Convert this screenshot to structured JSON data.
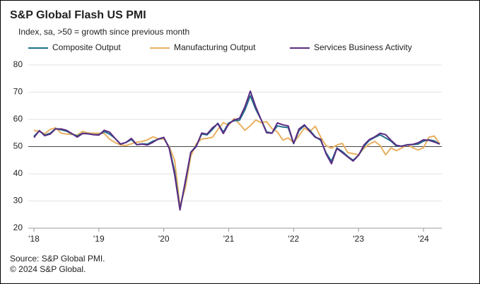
{
  "chart_data": {
    "type": "line",
    "title": "S&P Global Flash US PMI",
    "subtitle": "Index, sa, >50 = growth  since previous  month",
    "source": [
      "Source: S&P Global PMI.",
      "© 2024 S&P Global."
    ],
    "categories": [
      "'18",
      null,
      null,
      null,
      null,
      null,
      null,
      null,
      null,
      null,
      null,
      null,
      "'19",
      null,
      null,
      null,
      null,
      null,
      null,
      null,
      null,
      null,
      null,
      null,
      "'20",
      null,
      null,
      null,
      null,
      null,
      null,
      null,
      null,
      null,
      null,
      null,
      "'21",
      null,
      null,
      null,
      null,
      null,
      null,
      null,
      null,
      null,
      null,
      null,
      "'22",
      null,
      null,
      null,
      null,
      null,
      null,
      null,
      null,
      null,
      null,
      null,
      "'23",
      null,
      null,
      null,
      null,
      null,
      null,
      null,
      null,
      null,
      null,
      null,
      "'24",
      null,
      null,
      null
    ],
    "series": [
      {
        "name": "Composite Output",
        "color": "#1f6f8b",
        "values": [
          53.8,
          55.8,
          54.2,
          54.9,
          56.6,
          56.2,
          55.7,
          54.7,
          53.9,
          54.9,
          54.7,
          54.4,
          54.4,
          55.5,
          54.6,
          53.0,
          50.9,
          51.5,
          52.6,
          50.7,
          51.0,
          50.9,
          52.0,
          52.7,
          53.3,
          49.6,
          40.9,
          27.0,
          37.0,
          47.9,
          50.3,
          54.6,
          54.3,
          56.3,
          58.6,
          55.3,
          58.7,
          59.5,
          59.7,
          63.5,
          68.7,
          63.7,
          59.9,
          55.4,
          55.0,
          57.6,
          57.2,
          57.0,
          51.1,
          55.9,
          57.7,
          56.0,
          53.6,
          52.3,
          47.7,
          44.6,
          49.5,
          48.2,
          46.4,
          45.0,
          46.8,
          50.1,
          52.3,
          53.4,
          54.3,
          53.2,
          52.0,
          50.2,
          50.2,
          50.7,
          50.7,
          50.9,
          52.0,
          52.5,
          52.1,
          50.9
        ]
      },
      {
        "name": "Manufacturing Output",
        "color": "#e8b060",
        "values": [
          56.0,
          55.5,
          54.7,
          56.3,
          56.9,
          55.0,
          54.6,
          54.5,
          54.2,
          55.6,
          55.0,
          54.9,
          54.9,
          54.8,
          52.7,
          51.5,
          50.6,
          50.4,
          51.0,
          51.6,
          51.9,
          52.5,
          53.6,
          52.8,
          52.8,
          50.0,
          45.0,
          28.0,
          35.0,
          46.5,
          51.0,
          52.8,
          53.0,
          53.4,
          56.3,
          58.8,
          57.9,
          60.3,
          58.3,
          56.0,
          57.7,
          59.8,
          58.8,
          59.2,
          56.6,
          55.4,
          52.4,
          53.2,
          51.5,
          54.0,
          56.8,
          55.5,
          57.5,
          53.5,
          50.3,
          49.4,
          50.6,
          51.2,
          47.8,
          47.4,
          47.0,
          49.4,
          50.9,
          51.9,
          50.4,
          47.0,
          49.5,
          48.5,
          49.5,
          50.7,
          49.6,
          48.7,
          49.6,
          53.4,
          53.9,
          51.0
        ]
      },
      {
        "name": "Services Business Activity",
        "color": "#5b2c83",
        "values": [
          53.3,
          55.9,
          54.0,
          54.6,
          56.5,
          56.5,
          56.0,
          54.8,
          53.5,
          54.8,
          54.7,
          54.4,
          54.2,
          56.0,
          55.3,
          53.0,
          50.9,
          51.5,
          53.0,
          50.7,
          50.9,
          50.6,
          51.6,
          52.8,
          53.4,
          49.4,
          39.8,
          26.7,
          37.5,
          47.9,
          50.0,
          55.0,
          54.6,
          56.9,
          58.4,
          54.8,
          58.3,
          59.8,
          60.4,
          64.7,
          70.4,
          64.6,
          59.9,
          55.1,
          54.9,
          58.7,
          58.0,
          57.6,
          51.2,
          56.5,
          58.0,
          55.6,
          53.4,
          52.7,
          47.3,
          43.7,
          49.3,
          47.8,
          46.2,
          44.7,
          46.8,
          50.6,
          52.6,
          53.6,
          54.9,
          54.4,
          52.3,
          50.5,
          50.1,
          50.6,
          50.8,
          51.4,
          52.5,
          52.3,
          51.7,
          50.9
        ]
      }
    ],
    "ylim": [
      20,
      80
    ],
    "yticks": [
      20,
      30,
      40,
      50,
      60,
      70,
      80
    ],
    "grid": true,
    "hline": 50,
    "legend": "top"
  }
}
